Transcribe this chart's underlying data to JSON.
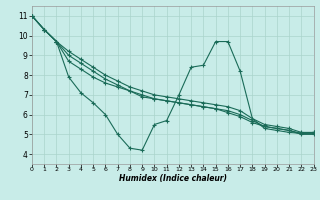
{
  "xlabel": "Humidex (Indice chaleur)",
  "bg_color": "#c8ece8",
  "grid_color": "#aad4cc",
  "line_color": "#1a6b58",
  "xlim": [
    0,
    23
  ],
  "ylim": [
    3.5,
    11.5
  ],
  "xticks": [
    0,
    1,
    2,
    3,
    4,
    5,
    6,
    7,
    8,
    9,
    10,
    11,
    12,
    13,
    14,
    15,
    16,
    17,
    18,
    19,
    20,
    21,
    22,
    23
  ],
  "yticks": [
    4,
    5,
    6,
    7,
    8,
    9,
    10,
    11
  ],
  "line_vshaped_x": [
    0,
    1,
    2,
    3,
    4,
    5,
    6,
    7,
    8,
    9,
    10,
    11,
    12,
    13,
    14,
    15,
    16,
    17,
    18,
    19,
    20,
    21,
    22,
    23
  ],
  "line_vshaped_y": [
    11.0,
    10.3,
    9.7,
    7.9,
    7.1,
    6.6,
    6.0,
    5.0,
    4.3,
    4.2,
    5.5,
    5.7,
    7.0,
    8.4,
    8.5,
    9.7,
    9.7,
    8.2,
    5.8,
    5.3,
    5.2,
    5.1,
    5.05,
    5.1
  ],
  "line_diag1_x": [
    0,
    1,
    2,
    3,
    4,
    5,
    6,
    7,
    8,
    9,
    10,
    11,
    12,
    13,
    14,
    15,
    16,
    17,
    18,
    19,
    20,
    21,
    22,
    23
  ],
  "line_diag1_y": [
    11.0,
    10.3,
    9.7,
    9.2,
    8.8,
    8.4,
    8.0,
    7.7,
    7.4,
    7.2,
    7.0,
    6.9,
    6.8,
    6.7,
    6.6,
    6.5,
    6.4,
    6.2,
    5.8,
    5.5,
    5.4,
    5.3,
    5.1,
    5.1
  ],
  "line_diag2_x": [
    0,
    1,
    2,
    3,
    4,
    5,
    6,
    7,
    8,
    9,
    10,
    11,
    12,
    13,
    14,
    15,
    16,
    17,
    18,
    19,
    20,
    21,
    22,
    23
  ],
  "line_diag2_y": [
    11.0,
    10.3,
    9.7,
    9.0,
    8.6,
    8.2,
    7.8,
    7.5,
    7.2,
    7.0,
    6.8,
    6.7,
    6.6,
    6.5,
    6.4,
    6.3,
    6.2,
    6.0,
    5.7,
    5.4,
    5.3,
    5.2,
    5.05,
    5.05
  ],
  "line_diag3_x": [
    0,
    1,
    2,
    3,
    4,
    5,
    6,
    7,
    8,
    9,
    10,
    11,
    12,
    13,
    14,
    15,
    16,
    17,
    18,
    19,
    20,
    21,
    22,
    23
  ],
  "line_diag3_y": [
    11.0,
    10.3,
    9.7,
    8.7,
    8.3,
    7.9,
    7.6,
    7.4,
    7.2,
    6.9,
    6.8,
    6.7,
    6.6,
    6.5,
    6.4,
    6.3,
    6.1,
    5.9,
    5.6,
    5.4,
    5.3,
    5.2,
    5.0,
    5.0
  ]
}
